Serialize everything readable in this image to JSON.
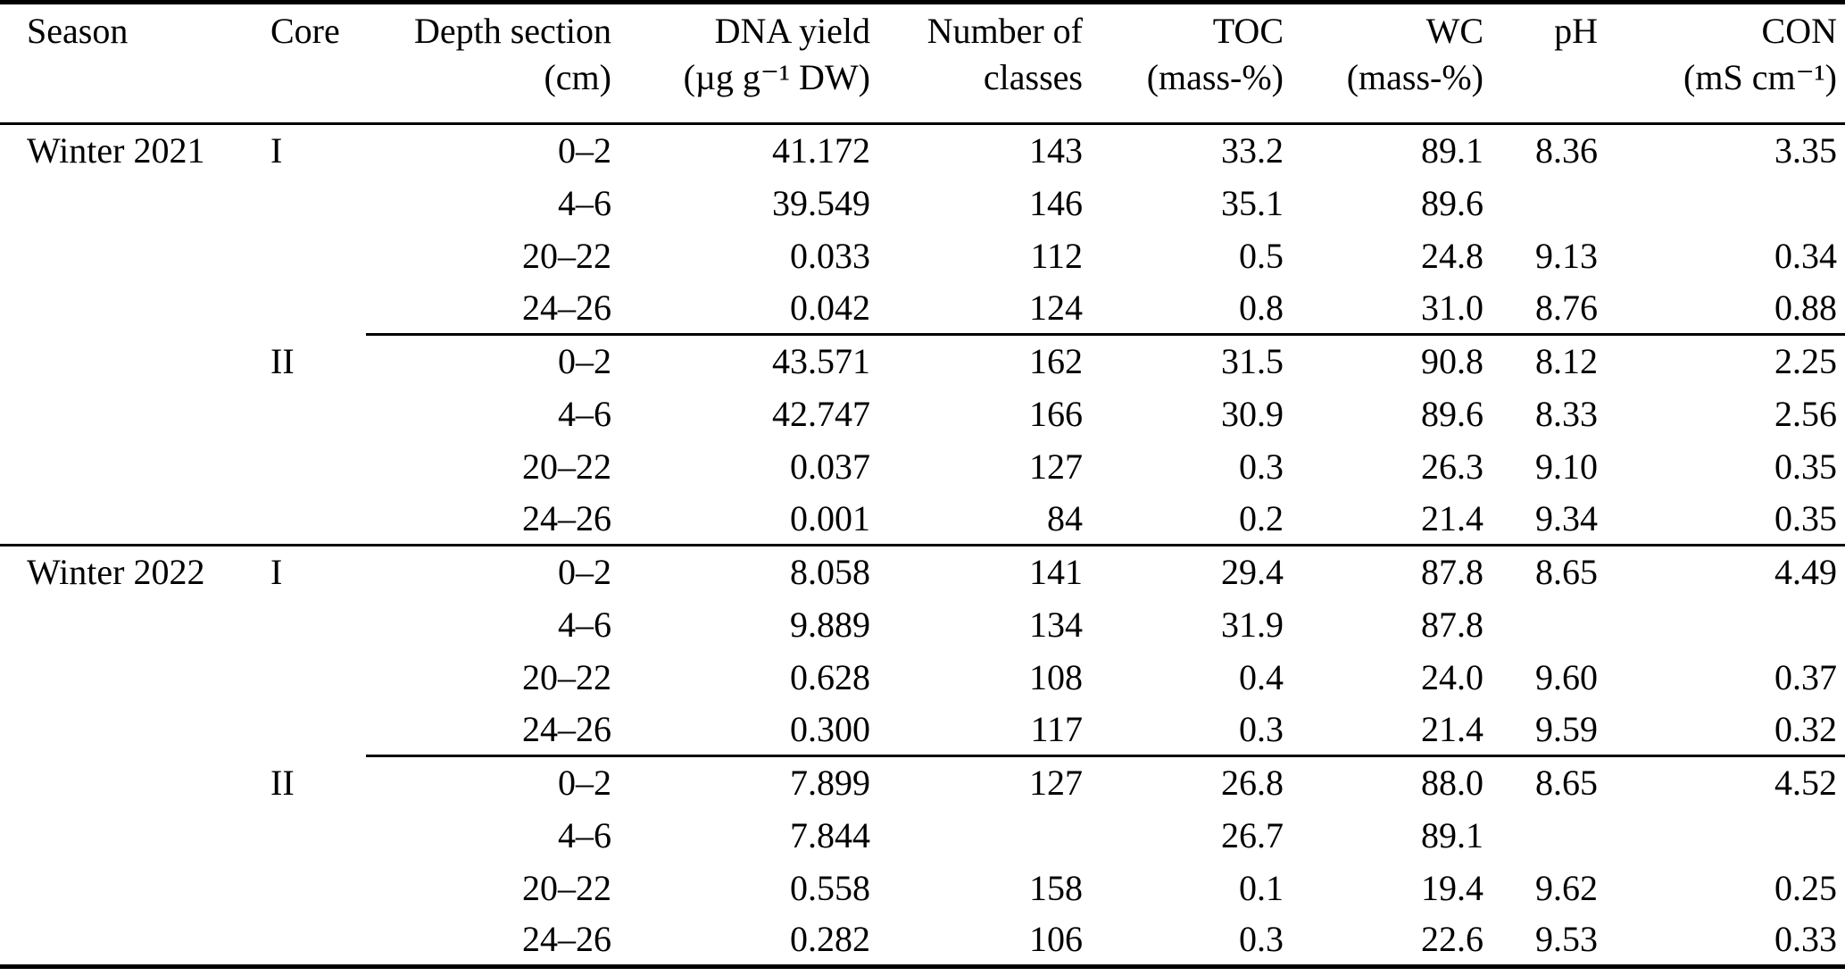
{
  "table": {
    "columns": [
      {
        "label": "Season",
        "unit": ""
      },
      {
        "label": "Core",
        "unit": ""
      },
      {
        "label": "Depth section",
        "unit": "(cm)"
      },
      {
        "label": "DNA yield",
        "unit": "(µg g⁻¹ DW)"
      },
      {
        "label": "Number of",
        "unit": "classes"
      },
      {
        "label": "TOC",
        "unit": "(mass-%)"
      },
      {
        "label": "WC",
        "unit": "(mass-%)"
      },
      {
        "label": "pH",
        "unit": ""
      },
      {
        "label": "CON",
        "unit": "(mS cm⁻¹)"
      }
    ],
    "sections": [
      {
        "season": "Winter 2021",
        "cores": [
          {
            "core": "I",
            "rows": [
              {
                "depth": "0–2",
                "dna_yield": "41.172",
                "num_classes": "143",
                "toc": "33.2",
                "wc": "89.1",
                "ph": "8.36",
                "con": "3.35"
              },
              {
                "depth": "4–6",
                "dna_yield": "39.549",
                "num_classes": "146",
                "toc": "35.1",
                "wc": "89.6",
                "ph": "",
                "con": ""
              },
              {
                "depth": "20–22",
                "dna_yield": "0.033",
                "num_classes": "112",
                "toc": "0.5",
                "wc": "24.8",
                "ph": "9.13",
                "con": "0.34"
              },
              {
                "depth": "24–26",
                "dna_yield": "0.042",
                "num_classes": "124",
                "toc": "0.8",
                "wc": "31.0",
                "ph": "8.76",
                "con": "0.88"
              }
            ]
          },
          {
            "core": "II",
            "rows": [
              {
                "depth": "0–2",
                "dna_yield": "43.571",
                "num_classes": "162",
                "toc": "31.5",
                "wc": "90.8",
                "ph": "8.12",
                "con": "2.25"
              },
              {
                "depth": "4–6",
                "dna_yield": "42.747",
                "num_classes": "166",
                "toc": "30.9",
                "wc": "89.6",
                "ph": "8.33",
                "con": "2.56"
              },
              {
                "depth": "20–22",
                "dna_yield": "0.037",
                "num_classes": "127",
                "toc": "0.3",
                "wc": "26.3",
                "ph": "9.10",
                "con": "0.35"
              },
              {
                "depth": "24–26",
                "dna_yield": "0.001",
                "num_classes": "84",
                "toc": "0.2",
                "wc": "21.4",
                "ph": "9.34",
                "con": "0.35"
              }
            ]
          }
        ]
      },
      {
        "season": "Winter 2022",
        "cores": [
          {
            "core": "I",
            "rows": [
              {
                "depth": "0–2",
                "dna_yield": "8.058",
                "num_classes": "141",
                "toc": "29.4",
                "wc": "87.8",
                "ph": "8.65",
                "con": "4.49"
              },
              {
                "depth": "4–6",
                "dna_yield": "9.889",
                "num_classes": "134",
                "toc": "31.9",
                "wc": "87.8",
                "ph": "",
                "con": ""
              },
              {
                "depth": "20–22",
                "dna_yield": "0.628",
                "num_classes": "108",
                "toc": "0.4",
                "wc": "24.0",
                "ph": "9.60",
                "con": "0.37"
              },
              {
                "depth": "24–26",
                "dna_yield": "0.300",
                "num_classes": "117",
                "toc": "0.3",
                "wc": "21.4",
                "ph": "9.59",
                "con": "0.32"
              }
            ]
          },
          {
            "core": "II",
            "rows": [
              {
                "depth": "0–2",
                "dna_yield": "7.899",
                "num_classes": "127",
                "toc": "26.8",
                "wc": "88.0",
                "ph": "8.65",
                "con": "4.52"
              },
              {
                "depth": "4–6",
                "dna_yield": "7.844",
                "num_classes": "",
                "toc": "26.7",
                "wc": "89.1",
                "ph": "",
                "con": ""
              },
              {
                "depth": "20–22",
                "dna_yield": "0.558",
                "num_classes": "158",
                "toc": "0.1",
                "wc": "19.4",
                "ph": "9.62",
                "con": "0.25"
              },
              {
                "depth": "24–26",
                "dna_yield": "0.282",
                "num_classes": "106",
                "toc": "0.3",
                "wc": "22.6",
                "ph": "9.53",
                "con": "0.33"
              }
            ]
          }
        ]
      }
    ]
  }
}
